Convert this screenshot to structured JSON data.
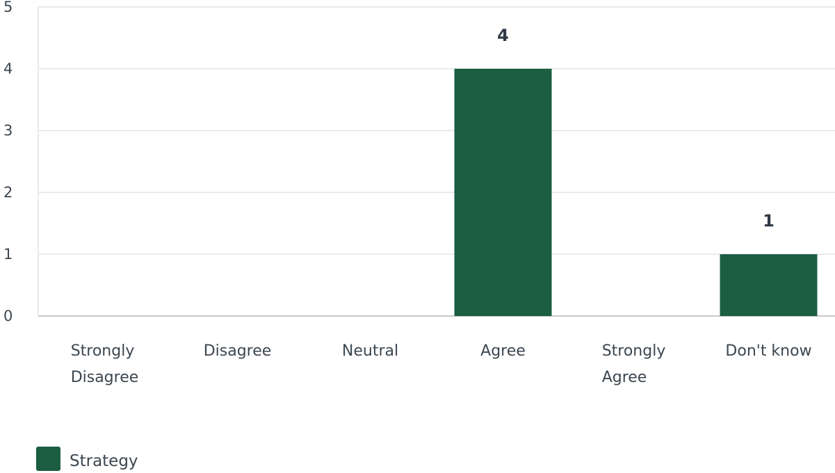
{
  "chart_data": {
    "type": "bar",
    "categories": [
      "Strongly Disagree",
      "Disagree",
      "Neutral",
      "Agree",
      "Strongly Agree",
      "Don't know"
    ],
    "category_lines": [
      [
        "Strongly",
        "Disagree"
      ],
      [
        "Disagree"
      ],
      [
        "Neutral"
      ],
      [
        "Agree"
      ],
      [
        "Strongly",
        "Agree"
      ],
      [
        "Don't know"
      ]
    ],
    "series": [
      {
        "name": "Strategy",
        "color": "#1b5e42",
        "values": [
          0,
          0,
          0,
          4,
          0,
          1
        ],
        "data_labels": [
          "",
          "",
          "",
          "4",
          "",
          "1"
        ]
      }
    ],
    "y_ticks": [
      "0",
      "1",
      "2",
      "3",
      "4",
      "5"
    ],
    "ylim": [
      0,
      5
    ],
    "grid": true,
    "legend": "bottom-left",
    "title": "",
    "xlabel": "",
    "ylabel": ""
  }
}
